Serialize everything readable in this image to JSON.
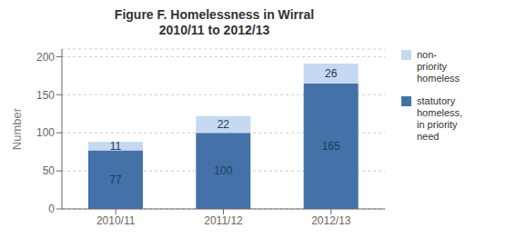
{
  "chart_data": {
    "type": "bar",
    "title": "Figure F. Homelessness in Wirral\n2010/11 to 2012/13",
    "ylabel": "Number",
    "categories": [
      "2010/11",
      "2011/12",
      "2012/13"
    ],
    "series": [
      {
        "name": "statutory\nhomeless,\nin priority\nneed",
        "color": "#4472A8",
        "values": [
          77,
          100,
          165
        ]
      },
      {
        "name": "non-\npriority\nhomeless",
        "color": "#C5D9F1",
        "values": [
          11,
          22,
          26
        ]
      }
    ],
    "stacked": true,
    "ylim": [
      0,
      210
    ],
    "yticks": [
      0,
      50,
      100,
      150,
      200
    ],
    "grid": true,
    "data_labels": true,
    "legend": "right"
  }
}
